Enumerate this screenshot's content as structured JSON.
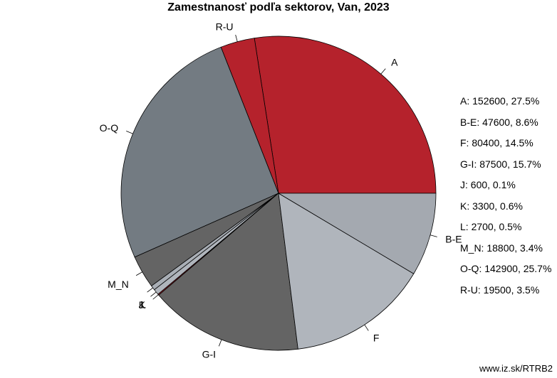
{
  "chart_data": {
    "type": "pie",
    "title": "Zamestnanosť podľa sektorov, Van, 2023",
    "slices": [
      {
        "label": "A",
        "value": 152600,
        "percent": "27.5%",
        "color": "#b5222c"
      },
      {
        "label": "R-U",
        "value": 19500,
        "percent": "3.5%",
        "color": "#b5222c"
      },
      {
        "label": "O-Q",
        "value": 142900,
        "percent": "25.7%",
        "color": "#737b82"
      },
      {
        "label": "M_N",
        "value": 18800,
        "percent": "3.4%",
        "color": "#646464"
      },
      {
        "label": "L",
        "value": 2700,
        "percent": "0.5%",
        "color": "#a9aeb5"
      },
      {
        "label": "K",
        "value": 3300,
        "percent": "0.6%",
        "color": "#b0b5bc"
      },
      {
        "label": "J",
        "value": 600,
        "percent": "0.1%",
        "color": "#b5222c"
      },
      {
        "label": "G-I",
        "value": 87500,
        "percent": "15.7%",
        "color": "#646464"
      },
      {
        "label": "F",
        "value": 80400,
        "percent": "14.5%",
        "color": "#b0b5bc"
      },
      {
        "label": "B-E",
        "value": 47600,
        "percent": "8.6%",
        "color": "#a4a9b0"
      }
    ],
    "legend": [
      {
        "label": "A",
        "value": 152600,
        "percent": "27.5%"
      },
      {
        "label": "B-E",
        "value": 47600,
        "percent": "8.6%"
      },
      {
        "label": "F",
        "value": 80400,
        "percent": "14.5%"
      },
      {
        "label": "G-I",
        "value": 87500,
        "percent": "15.7%"
      },
      {
        "label": "J",
        "value": 600,
        "percent": "0.1%"
      },
      {
        "label": "K",
        "value": 3300,
        "percent": "0.6%"
      },
      {
        "label": "L",
        "value": 2700,
        "percent": "0.5%"
      },
      {
        "label": "M_N",
        "value": 18800,
        "percent": "3.4%"
      },
      {
        "label": "O-Q",
        "value": 142900,
        "percent": "25.7%"
      },
      {
        "label": "R-U",
        "value": 19500,
        "percent": "3.5%"
      }
    ],
    "legend_position": "right"
  },
  "source": "www.iz.sk/RTRB2"
}
